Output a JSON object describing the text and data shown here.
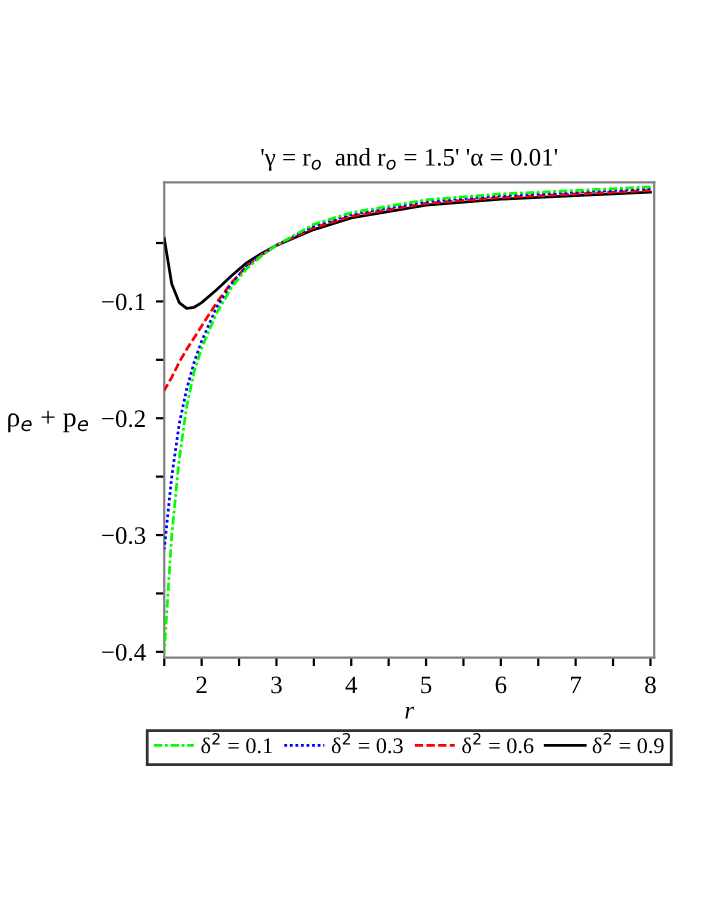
{
  "chart_data": {
    "type": "line",
    "title": "'γ = r$_{o}$  and r$_{o}$ = 1.5' 'α = 0.01'",
    "xlabel": "r",
    "ylabel": "ρ$_{e}$ + p$_{e}$",
    "x": [
      1.5,
      1.6,
      1.7,
      1.8,
      1.9,
      2,
      2.2,
      2.4,
      2.6,
      2.8,
      3,
      3.5,
      4,
      5,
      6,
      7,
      8
    ],
    "series": [
      {
        "name": "δ$^{2}$ = 0.1",
        "color": "#00ff00",
        "line_style": "dashdot",
        "values": [
          -0.4,
          -0.3,
          -0.235,
          -0.19,
          -0.16,
          -0.14,
          -0.11,
          -0.088,
          -0.072,
          -0.061,
          -0.052,
          -0.034,
          -0.024,
          -0.013,
          -0.008,
          -0.005,
          -0.002
        ]
      },
      {
        "name": "δ$^{2}$ = 0.3",
        "color": "#0000ff",
        "line_style": "dotted",
        "values": [
          -0.312,
          -0.25,
          -0.205,
          -0.175,
          -0.152,
          -0.134,
          -0.105,
          -0.085,
          -0.07,
          -0.06,
          -0.052,
          -0.0355,
          -0.0255,
          -0.0145,
          -0.0095,
          -0.0065,
          -0.0035
        ]
      },
      {
        "name": "δ$^{2}$ = 0.6",
        "color": "#ff0000",
        "line_style": "dashed",
        "values": [
          -0.176,
          -0.165,
          -0.152,
          -0.141,
          -0.131,
          -0.121,
          -0.101,
          -0.084,
          -0.07,
          -0.06,
          -0.052,
          -0.037,
          -0.027,
          -0.016,
          -0.011,
          -0.008,
          -0.005
        ]
      },
      {
        "name": "δ$^{2}$ = 0.9",
        "color": "#000000",
        "line_style": "solid",
        "values": [
          -0.046,
          -0.085,
          -0.101,
          -0.106,
          -0.105,
          -0.101,
          -0.09,
          -0.078,
          -0.067,
          -0.059,
          -0.052,
          -0.0385,
          -0.0285,
          -0.0175,
          -0.0125,
          -0.0095,
          -0.0065
        ]
      }
    ],
    "xlim": [
      1.5,
      8.05
    ],
    "ylim": [
      -0.405,
      0.002
    ],
    "xticks": [
      {
        "value": 1.5,
        "label": null
      },
      2,
      {
        "value": 2.5,
        "label": null
      },
      3,
      {
        "value": 3.5,
        "label": null
      },
      4,
      {
        "value": 4.5,
        "label": null
      },
      5,
      {
        "value": 5.5,
        "label": null
      },
      6,
      {
        "value": 6.5,
        "label": null
      },
      7,
      {
        "value": 7.5,
        "label": null
      },
      8
    ],
    "yticks": [
      -0.4,
      {
        "value": -0.35,
        "label": null
      },
      -0.3,
      {
        "value": -0.25,
        "label": null
      },
      -0.2,
      {
        "value": -0.15,
        "label": null
      },
      -0.1,
      {
        "value": -0.05,
        "label": null
      }
    ],
    "grid": false,
    "legend": "bottom",
    "marker": "none"
  }
}
